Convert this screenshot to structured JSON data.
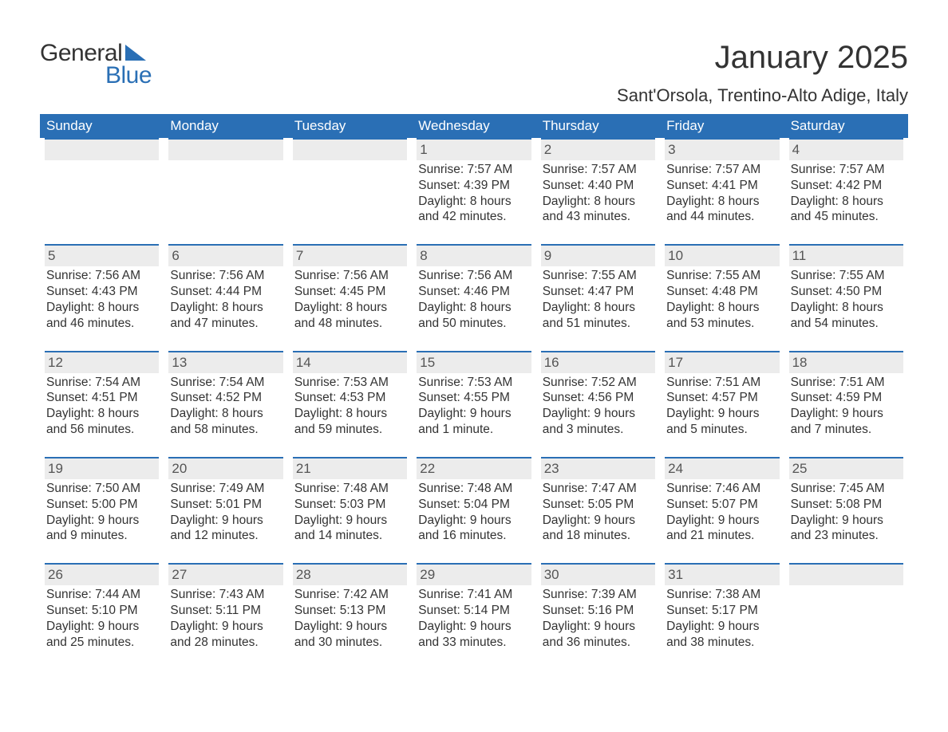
{
  "logo": {
    "word1": "General",
    "word2": "Blue",
    "triangle_color": "#2a6fb5",
    "text_color_dark": "#333333",
    "text_color_blue": "#2a6fb5"
  },
  "title": "January 2025",
  "location": "Sant'Orsola, Trentino-Alto Adige, Italy",
  "colors": {
    "header_bg": "#2a6fb5",
    "header_text": "#ffffff",
    "daynum_bg": "#ececec",
    "daynum_border": "#2a6fb5",
    "body_text": "#333333",
    "background": "#ffffff"
  },
  "typography": {
    "title_fontsize": 40,
    "location_fontsize": 22,
    "weekday_fontsize": 17,
    "daynum_fontsize": 17,
    "info_fontsize": 15.5,
    "font_family": "Arial"
  },
  "layout": {
    "columns": 7,
    "rows": 5,
    "cell_min_height": 126
  },
  "weekdays": [
    "Sunday",
    "Monday",
    "Tuesday",
    "Wednesday",
    "Thursday",
    "Friday",
    "Saturday"
  ],
  "weeks": [
    [
      {
        "day": "",
        "sunrise": "",
        "sunset": "",
        "daylight": ""
      },
      {
        "day": "",
        "sunrise": "",
        "sunset": "",
        "daylight": ""
      },
      {
        "day": "",
        "sunrise": "",
        "sunset": "",
        "daylight": ""
      },
      {
        "day": "1",
        "sunrise": "Sunrise: 7:57 AM",
        "sunset": "Sunset: 4:39 PM",
        "daylight": "Daylight: 8 hours and 42 minutes."
      },
      {
        "day": "2",
        "sunrise": "Sunrise: 7:57 AM",
        "sunset": "Sunset: 4:40 PM",
        "daylight": "Daylight: 8 hours and 43 minutes."
      },
      {
        "day": "3",
        "sunrise": "Sunrise: 7:57 AM",
        "sunset": "Sunset: 4:41 PM",
        "daylight": "Daylight: 8 hours and 44 minutes."
      },
      {
        "day": "4",
        "sunrise": "Sunrise: 7:57 AM",
        "sunset": "Sunset: 4:42 PM",
        "daylight": "Daylight: 8 hours and 45 minutes."
      }
    ],
    [
      {
        "day": "5",
        "sunrise": "Sunrise: 7:56 AM",
        "sunset": "Sunset: 4:43 PM",
        "daylight": "Daylight: 8 hours and 46 minutes."
      },
      {
        "day": "6",
        "sunrise": "Sunrise: 7:56 AM",
        "sunset": "Sunset: 4:44 PM",
        "daylight": "Daylight: 8 hours and 47 minutes."
      },
      {
        "day": "7",
        "sunrise": "Sunrise: 7:56 AM",
        "sunset": "Sunset: 4:45 PM",
        "daylight": "Daylight: 8 hours and 48 minutes."
      },
      {
        "day": "8",
        "sunrise": "Sunrise: 7:56 AM",
        "sunset": "Sunset: 4:46 PM",
        "daylight": "Daylight: 8 hours and 50 minutes."
      },
      {
        "day": "9",
        "sunrise": "Sunrise: 7:55 AM",
        "sunset": "Sunset: 4:47 PM",
        "daylight": "Daylight: 8 hours and 51 minutes."
      },
      {
        "day": "10",
        "sunrise": "Sunrise: 7:55 AM",
        "sunset": "Sunset: 4:48 PM",
        "daylight": "Daylight: 8 hours and 53 minutes."
      },
      {
        "day": "11",
        "sunrise": "Sunrise: 7:55 AM",
        "sunset": "Sunset: 4:50 PM",
        "daylight": "Daylight: 8 hours and 54 minutes."
      }
    ],
    [
      {
        "day": "12",
        "sunrise": "Sunrise: 7:54 AM",
        "sunset": "Sunset: 4:51 PM",
        "daylight": "Daylight: 8 hours and 56 minutes."
      },
      {
        "day": "13",
        "sunrise": "Sunrise: 7:54 AM",
        "sunset": "Sunset: 4:52 PM",
        "daylight": "Daylight: 8 hours and 58 minutes."
      },
      {
        "day": "14",
        "sunrise": "Sunrise: 7:53 AM",
        "sunset": "Sunset: 4:53 PM",
        "daylight": "Daylight: 8 hours and 59 minutes."
      },
      {
        "day": "15",
        "sunrise": "Sunrise: 7:53 AM",
        "sunset": "Sunset: 4:55 PM",
        "daylight": "Daylight: 9 hours and 1 minute."
      },
      {
        "day": "16",
        "sunrise": "Sunrise: 7:52 AM",
        "sunset": "Sunset: 4:56 PM",
        "daylight": "Daylight: 9 hours and 3 minutes."
      },
      {
        "day": "17",
        "sunrise": "Sunrise: 7:51 AM",
        "sunset": "Sunset: 4:57 PM",
        "daylight": "Daylight: 9 hours and 5 minutes."
      },
      {
        "day": "18",
        "sunrise": "Sunrise: 7:51 AM",
        "sunset": "Sunset: 4:59 PM",
        "daylight": "Daylight: 9 hours and 7 minutes."
      }
    ],
    [
      {
        "day": "19",
        "sunrise": "Sunrise: 7:50 AM",
        "sunset": "Sunset: 5:00 PM",
        "daylight": "Daylight: 9 hours and 9 minutes."
      },
      {
        "day": "20",
        "sunrise": "Sunrise: 7:49 AM",
        "sunset": "Sunset: 5:01 PM",
        "daylight": "Daylight: 9 hours and 12 minutes."
      },
      {
        "day": "21",
        "sunrise": "Sunrise: 7:48 AM",
        "sunset": "Sunset: 5:03 PM",
        "daylight": "Daylight: 9 hours and 14 minutes."
      },
      {
        "day": "22",
        "sunrise": "Sunrise: 7:48 AM",
        "sunset": "Sunset: 5:04 PM",
        "daylight": "Daylight: 9 hours and 16 minutes."
      },
      {
        "day": "23",
        "sunrise": "Sunrise: 7:47 AM",
        "sunset": "Sunset: 5:05 PM",
        "daylight": "Daylight: 9 hours and 18 minutes."
      },
      {
        "day": "24",
        "sunrise": "Sunrise: 7:46 AM",
        "sunset": "Sunset: 5:07 PM",
        "daylight": "Daylight: 9 hours and 21 minutes."
      },
      {
        "day": "25",
        "sunrise": "Sunrise: 7:45 AM",
        "sunset": "Sunset: 5:08 PM",
        "daylight": "Daylight: 9 hours and 23 minutes."
      }
    ],
    [
      {
        "day": "26",
        "sunrise": "Sunrise: 7:44 AM",
        "sunset": "Sunset: 5:10 PM",
        "daylight": "Daylight: 9 hours and 25 minutes."
      },
      {
        "day": "27",
        "sunrise": "Sunrise: 7:43 AM",
        "sunset": "Sunset: 5:11 PM",
        "daylight": "Daylight: 9 hours and 28 minutes."
      },
      {
        "day": "28",
        "sunrise": "Sunrise: 7:42 AM",
        "sunset": "Sunset: 5:13 PM",
        "daylight": "Daylight: 9 hours and 30 minutes."
      },
      {
        "day": "29",
        "sunrise": "Sunrise: 7:41 AM",
        "sunset": "Sunset: 5:14 PM",
        "daylight": "Daylight: 9 hours and 33 minutes."
      },
      {
        "day": "30",
        "sunrise": "Sunrise: 7:39 AM",
        "sunset": "Sunset: 5:16 PM",
        "daylight": "Daylight: 9 hours and 36 minutes."
      },
      {
        "day": "31",
        "sunrise": "Sunrise: 7:38 AM",
        "sunset": "Sunset: 5:17 PM",
        "daylight": "Daylight: 9 hours and 38 minutes."
      },
      {
        "day": "",
        "sunrise": "",
        "sunset": "",
        "daylight": ""
      }
    ]
  ]
}
